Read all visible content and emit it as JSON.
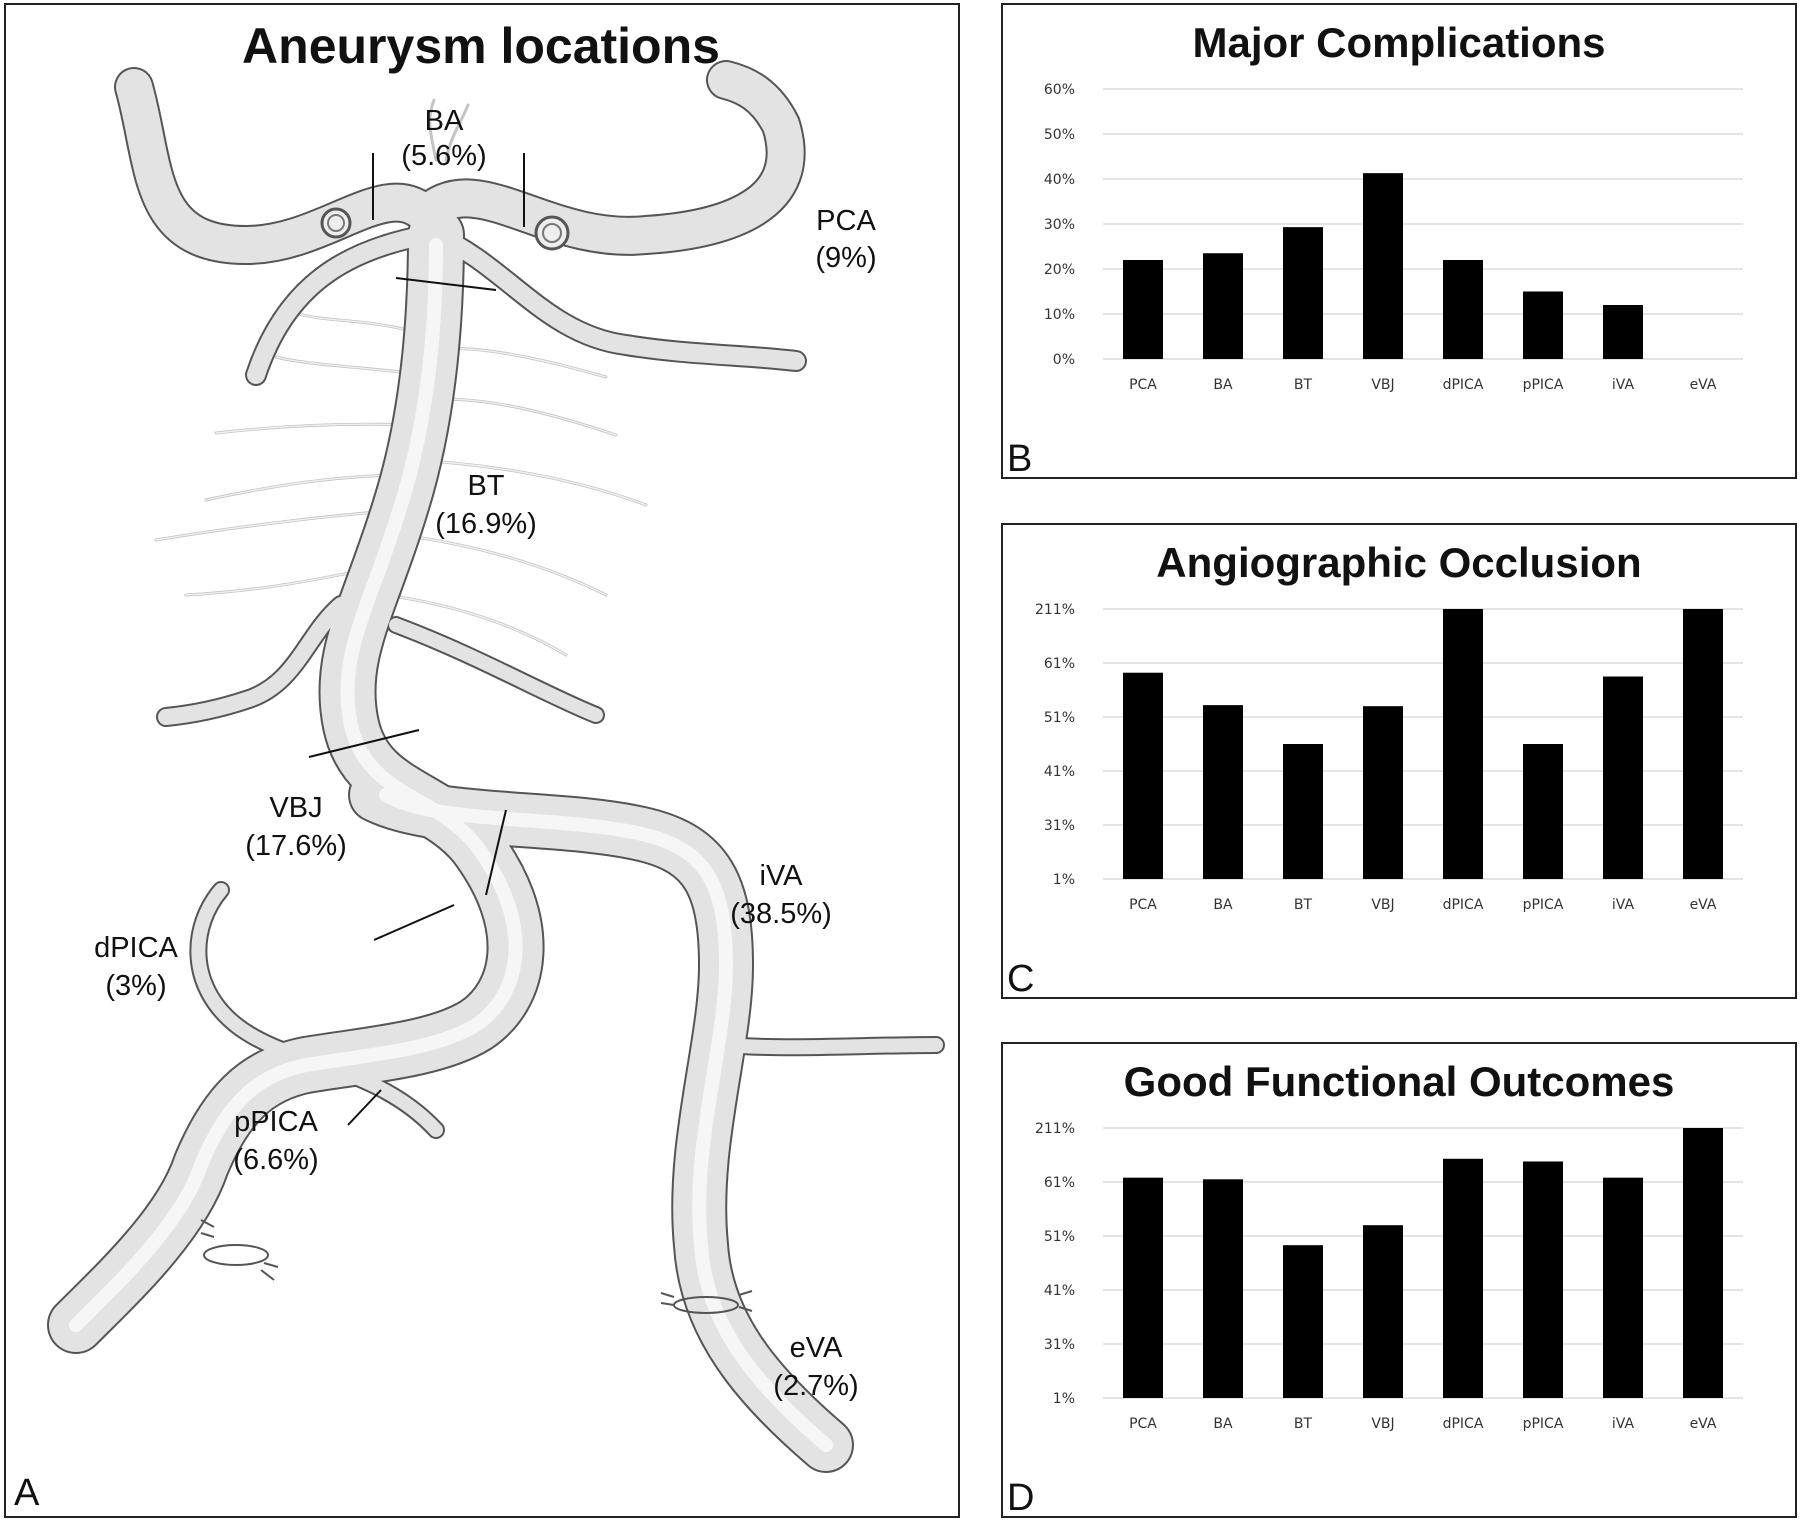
{
  "panel_a": {
    "title": "Aneurysm locations",
    "letter": "A",
    "labels": {
      "ba": {
        "name": "BA",
        "pct": "(5.6%)"
      },
      "pca": {
        "name": "PCA",
        "pct": "(9%)"
      },
      "bt": {
        "name": "BT",
        "pct": "(16.9%)"
      },
      "vbj": {
        "name": "VBJ",
        "pct": "(17.6%)"
      },
      "ivap": {
        "name": "iVA",
        "pct": "(38.5%)"
      },
      "dpica": {
        "name": "dPICA",
        "pct": "(3%)"
      },
      "ppica": {
        "name": "pPICA",
        "pct": "(6.6%)"
      },
      "eva": {
        "name": "eVA",
        "pct": "(2.7%)"
      }
    }
  },
  "chart_data": [
    {
      "type": "bar",
      "letter": "B",
      "title": "Major Complications",
      "categories": [
        "PCA",
        "BA",
        "BT",
        "VBJ",
        "dPICA",
        "pPICA",
        "iVA",
        "eVA"
      ],
      "values": [
        22,
        23.5,
        29.3,
        41.3,
        22,
        15,
        12,
        0
      ],
      "ylim": [
        0,
        60
      ],
      "yticks": [
        "0%",
        "10%",
        "20%",
        "30%",
        "40%",
        "50%",
        "60%"
      ],
      "grid": true,
      "bar_color": "#000000"
    },
    {
      "type": "bar",
      "letter": "C",
      "title": "Angiographic Occlusion",
      "categories": [
        "PCA",
        "BA",
        "BT",
        "VBJ",
        "dPICA",
        "pPICA",
        "iVA",
        "eVA"
      ],
      "values": [
        3.82,
        3.22,
        2.5,
        3.2,
        5,
        2.5,
        3.75,
        5
      ],
      "ylim": [
        0,
        5
      ],
      "yticks": [
        "1%",
        "31%",
        "41%",
        "51%",
        "61%",
        "211%"
      ],
      "grid": true,
      "bar_color": "#000000"
    },
    {
      "type": "bar",
      "letter": "D",
      "title": "Good Functional Outcomes",
      "categories": [
        "PCA",
        "BA",
        "BT",
        "VBJ",
        "dPICA",
        "pPICA",
        "iVA",
        "eVA"
      ],
      "values": [
        4.08,
        4.05,
        2.83,
        3.2,
        4.43,
        4.38,
        4.08,
        5
      ],
      "ylim": [
        0,
        5
      ],
      "yticks": [
        "1%",
        "31%",
        "41%",
        "51%",
        "61%",
        "211%"
      ],
      "grid": true,
      "bar_color": "#000000"
    }
  ]
}
